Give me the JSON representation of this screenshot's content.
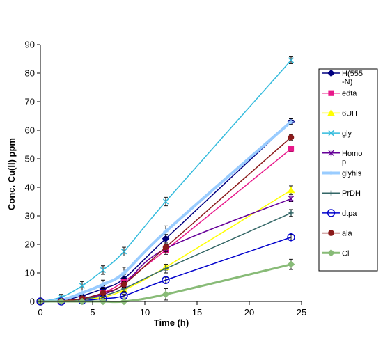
{
  "chart_data": {
    "type": "line",
    "title": "",
    "xlabel": "Time (h)",
    "ylabel": "Conc. Cu(II) ppm",
    "xlim": [
      0,
      25
    ],
    "ylim": [
      0,
      90
    ],
    "xticks": [
      0,
      5,
      10,
      15,
      20,
      25
    ],
    "yticks": [
      0,
      10,
      20,
      30,
      40,
      50,
      60,
      70,
      80,
      90
    ],
    "grid": false,
    "legend_position": "right",
    "x": [
      0,
      2,
      4,
      6,
      8,
      12,
      24
    ],
    "series": [
      {
        "name": "H(555-N)",
        "legend_lines": [
          "H(555",
          "-N)"
        ],
        "color": "#000080",
        "marker": "diamond",
        "linewidth": 1.5,
        "values": [
          0,
          0.3,
          2,
          4.5,
          8,
          22,
          63
        ],
        "errors": [
          0.5,
          0.5,
          1,
          1,
          1.5,
          1.5,
          1
        ]
      },
      {
        "name": "edta",
        "legend_lines": [
          "edta"
        ],
        "color": "#e8188a",
        "marker": "square",
        "linewidth": 1.5,
        "values": [
          0,
          0.2,
          0.8,
          3,
          7,
          18,
          53.5
        ],
        "errors": [
          0.5,
          0.5,
          0.5,
          1,
          1,
          1.5,
          1
        ]
      },
      {
        "name": "6UH",
        "legend_lines": [
          "6UH"
        ],
        "color": "#ffff00",
        "marker": "triangle",
        "linewidth": 1.5,
        "values": [
          0,
          0.2,
          0.6,
          1.5,
          4,
          12,
          39
        ],
        "errors": [
          0.5,
          0.5,
          0.5,
          0.5,
          1,
          1,
          1.5
        ]
      },
      {
        "name": "gly",
        "legend_lines": [
          "gly"
        ],
        "color": "#33bbdd",
        "marker": "x",
        "linewidth": 1.5,
        "values": [
          0,
          1.5,
          5.5,
          11,
          17.5,
          35,
          84.5
        ],
        "errors": [
          0.5,
          1,
          1.5,
          1.5,
          1.5,
          1.5,
          1.2
        ]
      },
      {
        "name": "Homop",
        "legend_lines": [
          "Homo",
          "p"
        ],
        "color": "#660099",
        "marker": "star",
        "linewidth": 1.5,
        "values": [
          0,
          0.2,
          1,
          2.5,
          6,
          18.5,
          36
        ],
        "errors": [
          0.5,
          0.5,
          0.5,
          1,
          1,
          1.5,
          1
        ]
      },
      {
        "name": "glyhis",
        "legend_lines": [
          "glyhis"
        ],
        "color": "#99ccff",
        "marker": "plus",
        "linewidth": 4,
        "values": [
          0,
          0.5,
          3,
          6,
          10,
          24.5,
          63
        ],
        "errors": [
          0.5,
          0.5,
          1,
          1.5,
          2,
          2,
          1
        ]
      },
      {
        "name": "PrDH",
        "legend_lines": [
          "PrDH"
        ],
        "color": "#336666",
        "marker": "plus",
        "linewidth": 1.5,
        "values": [
          0,
          0.2,
          0.8,
          2,
          4.5,
          11.5,
          31
        ],
        "errors": [
          0.5,
          0.5,
          0.5,
          0.5,
          1,
          1.5,
          1.2
        ]
      },
      {
        "name": "dtpa",
        "legend_lines": [
          "dtpa"
        ],
        "color": "#0000cc",
        "marker": "circle",
        "linewidth": 1.5,
        "values": [
          0,
          0,
          0.3,
          1,
          2,
          7.5,
          22.5
        ],
        "errors": [
          0.5,
          0.5,
          0.5,
          0.5,
          0.5,
          1,
          1
        ]
      },
      {
        "name": "ala",
        "legend_lines": [
          "ala"
        ],
        "color": "#8b1a1a",
        "marker": "dot",
        "linewidth": 1.5,
        "values": [
          0,
          0.2,
          1,
          3,
          6,
          19,
          57.5
        ],
        "errors": [
          0.5,
          0.5,
          0.5,
          1,
          1,
          1.5,
          1
        ]
      },
      {
        "name": "Cl",
        "legend_lines": [
          "Cl"
        ],
        "color": "#88bb77",
        "marker": "diamond",
        "linewidth": 3,
        "values": [
          0,
          0,
          0,
          0,
          0,
          2.5,
          13
        ],
        "errors": [
          0.5,
          0.5,
          0.5,
          0.5,
          0.5,
          2,
          1.8
        ]
      }
    ]
  }
}
